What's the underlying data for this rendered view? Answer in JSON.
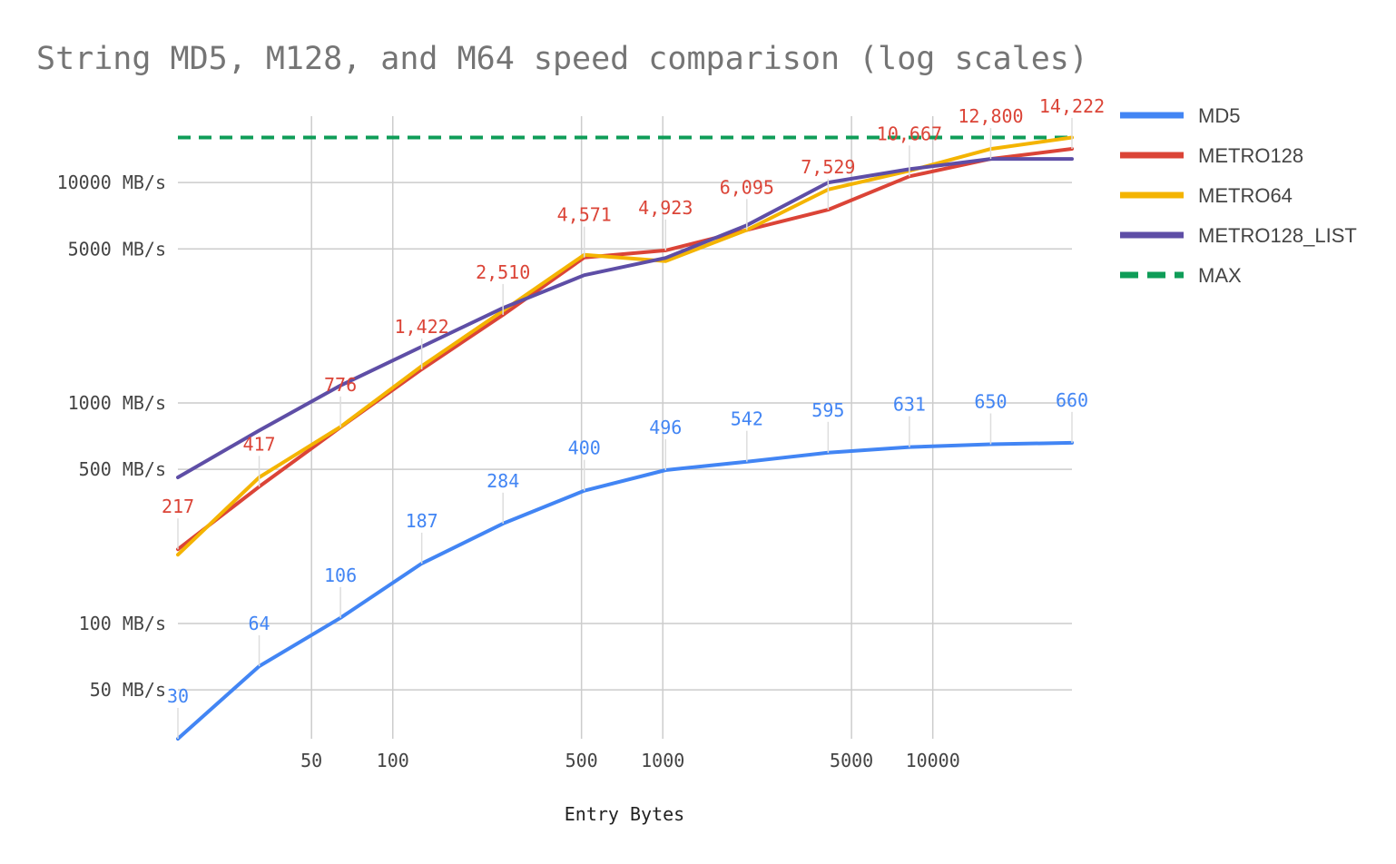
{
  "chart_data": {
    "type": "line",
    "title": "String MD5, M128, and M64 speed comparison (log scales)",
    "xlabel": "Entry Bytes",
    "ylabel": "",
    "x_scale": "log",
    "y_scale": "log",
    "xlim": [
      16,
      32768
    ],
    "ylim": [
      30,
      20000
    ],
    "x_ticks": [
      {
        "value": 50,
        "label": "50"
      },
      {
        "value": 100,
        "label": "100"
      },
      {
        "value": 500,
        "label": "500"
      },
      {
        "value": 1000,
        "label": "1000"
      },
      {
        "value": 5000,
        "label": "5000"
      },
      {
        "value": 10000,
        "label": "10000"
      }
    ],
    "y_ticks": [
      {
        "value": 50,
        "label": "50 MB/s"
      },
      {
        "value": 100,
        "label": "100 MB/s"
      },
      {
        "value": 500,
        "label": "500 MB/s"
      },
      {
        "value": 1000,
        "label": "1000 MB/s"
      },
      {
        "value": 5000,
        "label": "5000 MB/s"
      },
      {
        "value": 10000,
        "label": "10000 MB/s"
      }
    ],
    "x_gridlines": [
      50,
      100,
      500,
      1000,
      5000,
      10000
    ],
    "y_gridlines": [
      50,
      100,
      500,
      1000,
      5000,
      10000
    ],
    "grid": true,
    "legend_position": "right",
    "x": [
      16,
      32,
      64,
      128,
      256,
      512,
      1024,
      2048,
      4096,
      8192,
      16384,
      32768
    ],
    "series": [
      {
        "name": "MD5",
        "color": "#4285f4",
        "values": [
          30,
          64,
          106,
          187,
          284,
          400,
          496,
          542,
          595,
          631,
          650,
          660
        ],
        "labels": [
          "30",
          "64",
          "106",
          "187",
          "284",
          "400",
          "496",
          "542",
          "595",
          "631",
          "650",
          "660"
        ]
      },
      {
        "name": "METRO128",
        "color": "#db4437",
        "values": [
          217,
          417,
          776,
          1422,
          2510,
          4571,
          4923,
          6095,
          7529,
          10667,
          12800,
          14222
        ],
        "labels": [
          "217",
          "417",
          "776",
          "1,422",
          "2,510",
          "4,571",
          "4,923",
          "6,095",
          "7,529",
          "10,667",
          "12,800",
          "14,222"
        ]
      },
      {
        "name": "METRO64",
        "color": "#f4b400",
        "values": [
          205,
          460,
          780,
          1470,
          2620,
          4700,
          4400,
          6095,
          9300,
          11300,
          14200,
          16000
        ]
      },
      {
        "name": "METRO128_LIST",
        "color": "#5e4ea6",
        "values": [
          460,
          750,
          1200,
          1800,
          2700,
          3800,
          4550,
          6400,
          10000,
          11500,
          12800,
          12800
        ]
      },
      {
        "name": "MAX",
        "color": "#0f9d58",
        "dashed": true,
        "values": [
          16000,
          16000,
          16000,
          16000,
          16000,
          16000,
          16000,
          16000,
          16000,
          16000,
          16000,
          16000
        ]
      }
    ]
  }
}
